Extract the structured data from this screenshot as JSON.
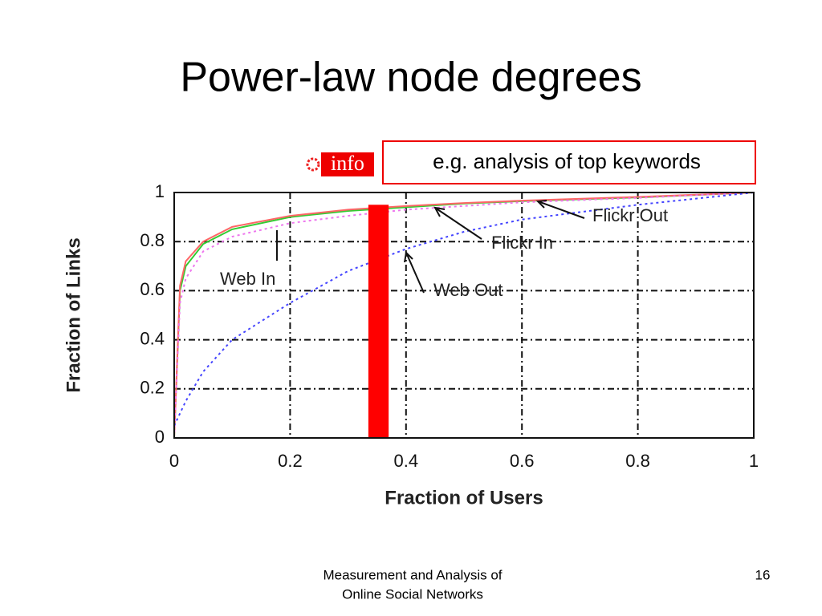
{
  "slide_title": "Power-law node degrees",
  "callout": "e.g. analysis of top keywords",
  "badge": "info",
  "footer": [
    "Measurement and Analysis of",
    "Online Social Networks"
  ],
  "page_number": "16",
  "chart_data": {
    "type": "line",
    "x_label": "Fraction of Users",
    "y_label": "Fraction of Links",
    "x": [
      0,
      0.01,
      0.02,
      0.05,
      0.1,
      0.2,
      0.3,
      0.4,
      0.5,
      0.6,
      0.8,
      1
    ],
    "series": [
      {
        "name": "Flickr In",
        "color": "#33cc33",
        "line_style": "solid",
        "values": [
          0,
          0.6,
          0.7,
          0.79,
          0.85,
          0.9,
          0.925,
          0.94,
          0.955,
          0.965,
          0.98,
          1
        ]
      },
      {
        "name": "Flickr Out",
        "color": "#ff6666",
        "line_style": "solid",
        "values": [
          0,
          0.62,
          0.72,
          0.8,
          0.86,
          0.905,
          0.93,
          0.945,
          0.957,
          0.967,
          0.982,
          1
        ]
      },
      {
        "name": "Web In",
        "color": "#ee77ee",
        "line_style": "dotted",
        "values": [
          0,
          0.55,
          0.65,
          0.76,
          0.82,
          0.875,
          0.905,
          0.93,
          0.945,
          0.96,
          0.978,
          1
        ]
      },
      {
        "name": "Web Out",
        "color": "#4444ff",
        "line_style": "dotted",
        "values": [
          0.05,
          0.1,
          0.15,
          0.27,
          0.4,
          0.55,
          0.68,
          0.77,
          0.84,
          0.89,
          0.95,
          1
        ]
      }
    ],
    "xlim": [
      0,
      1
    ],
    "ylim": [
      0,
      1
    ],
    "xticks": [
      0,
      0.2,
      0.4,
      0.6,
      0.8,
      1
    ],
    "yticks": [
      0,
      0.2,
      0.4,
      0.6,
      0.8,
      1
    ],
    "grid": true,
    "highlight": {
      "x": [
        0.335,
        0.37
      ],
      "y": 0.95,
      "color": "#ff0000"
    }
  }
}
